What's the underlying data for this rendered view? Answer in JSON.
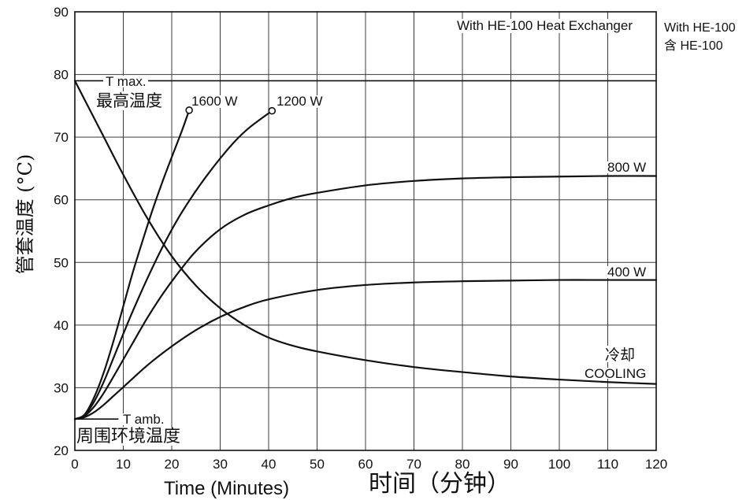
{
  "chart_data": {
    "type": "line",
    "xlabel": "Time (Minutes)",
    "xlabel_zh": "时间（分钟）",
    "ylabel": "管套温度 (°C)",
    "xlim": [
      0,
      120
    ],
    "ylim": [
      20,
      90
    ],
    "xticks": [
      0,
      10,
      20,
      30,
      40,
      50,
      60,
      70,
      80,
      90,
      100,
      110,
      120
    ],
    "yticks": [
      20,
      30,
      40,
      50,
      60,
      70,
      80,
      90
    ],
    "grid": true,
    "annotations": [
      "With HE-100 Heat Exchanger"
    ],
    "side_note": [
      "With HE-100",
      "含 HE-100"
    ],
    "reference_lines": [
      {
        "label": "T max.",
        "label_zh": "最高温度",
        "y": 79
      },
      {
        "label": "T amb.",
        "label_zh": "周围环境温度",
        "y": 25
      }
    ],
    "series": [
      {
        "name": "1600 W",
        "end_marker": true,
        "x": [
          0,
          2,
          4,
          6,
          8,
          10,
          12,
          14,
          16,
          18,
          20,
          22,
          23.6
        ],
        "y": [
          25,
          25.7,
          28.5,
          32.5,
          37.5,
          43,
          48.5,
          53.5,
          58.3,
          62.7,
          66.8,
          70.8,
          74.3
        ]
      },
      {
        "name": "1200 W",
        "end_marker": true,
        "x": [
          0,
          2,
          4,
          6,
          8,
          10,
          12,
          15,
          18,
          21,
          24,
          27,
          30,
          33,
          36,
          40.7
        ],
        "y": [
          25,
          25.6,
          27.8,
          31,
          34.8,
          38.6,
          42.3,
          47.5,
          52.3,
          56.6,
          60.3,
          63.6,
          66.6,
          69.3,
          71.5,
          74.2
        ]
      },
      {
        "name": "800 W",
        "end_marker": false,
        "x": [
          0,
          2,
          4,
          6,
          8,
          10,
          12,
          15,
          18,
          21,
          25,
          30,
          35,
          40,
          45,
          50,
          60,
          70,
          80,
          90,
          100,
          110,
          120
        ],
        "y": [
          25,
          25.5,
          27,
          29.2,
          31.8,
          34.5,
          37.2,
          41.2,
          44.8,
          48,
          51.8,
          55.3,
          57.6,
          59.1,
          60.3,
          61.1,
          62.3,
          63,
          63.4,
          63.6,
          63.7,
          63.8,
          63.8
        ]
      },
      {
        "name": "400 W",
        "end_marker": false,
        "x": [
          0,
          2,
          4,
          6,
          8,
          10,
          15,
          20,
          25,
          30,
          35,
          40,
          50,
          60,
          70,
          80,
          90,
          100,
          110,
          120
        ],
        "y": [
          25,
          25.3,
          26.1,
          27.3,
          28.7,
          30.1,
          33.6,
          36.6,
          39.2,
          41.3,
          42.9,
          44.1,
          45.6,
          46.4,
          46.8,
          47,
          47.1,
          47.2,
          47.2,
          47.2
        ]
      },
      {
        "name": "COOLING",
        "name_zh": "冷却",
        "end_marker": false,
        "x": [
          0,
          5,
          10,
          15,
          20,
          25,
          30,
          35,
          40,
          45,
          50,
          60,
          70,
          80,
          90,
          100,
          110,
          120
        ],
        "y": [
          79,
          71.5,
          64,
          57,
          51,
          46.3,
          42.7,
          40,
          38,
          36.7,
          35.8,
          34.4,
          33.3,
          32.5,
          31.8,
          31.3,
          30.9,
          30.6
        ]
      }
    ],
    "colors": {
      "line": "#111111",
      "grid": "#3c3c3c",
      "background": "#ffffff"
    }
  }
}
